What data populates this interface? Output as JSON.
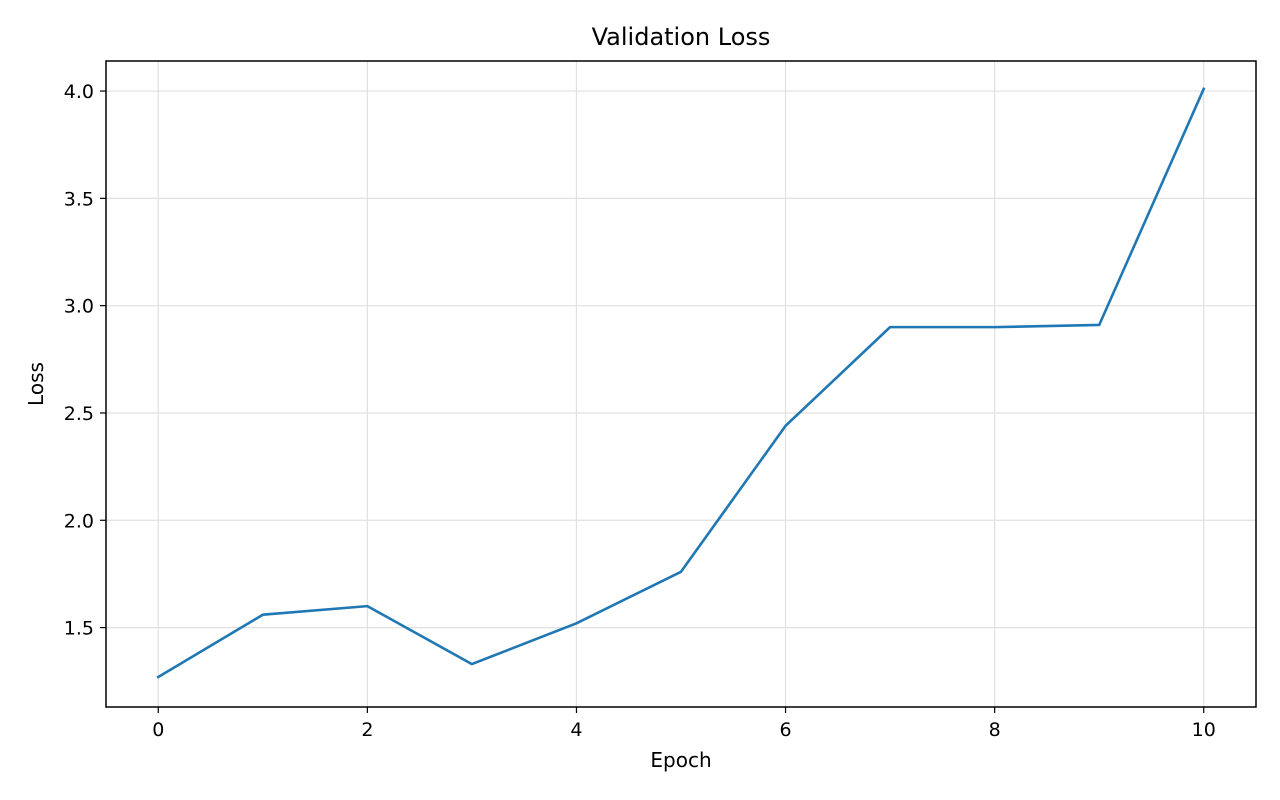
{
  "chart_data": {
    "type": "line",
    "title": "Validation Loss",
    "xlabel": "Epoch",
    "ylabel": "Loss",
    "x": [
      0,
      1,
      2,
      3,
      4,
      5,
      6,
      7,
      8,
      9,
      10
    ],
    "series": [
      {
        "values": [
          1.27,
          1.56,
          1.6,
          1.33,
          1.52,
          1.76,
          2.44,
          2.9,
          2.9,
          2.91,
          4.01
        ],
        "color": "#1f77b4"
      }
    ],
    "xlim": [
      -0.5,
      10.5
    ],
    "ylim": [
      1.13,
      4.14
    ],
    "xticks": [
      0,
      2,
      4,
      6,
      8,
      10
    ],
    "xtick_labels": [
      "0",
      "2",
      "4",
      "6",
      "8",
      "10"
    ],
    "yticks": [
      1.5,
      2.0,
      2.5,
      3.0,
      3.5,
      4.0
    ],
    "ytick_labels": [
      "1.5",
      "2.0",
      "2.5",
      "3.0",
      "3.5",
      "4.0"
    ],
    "grid": true,
    "legend": false
  }
}
